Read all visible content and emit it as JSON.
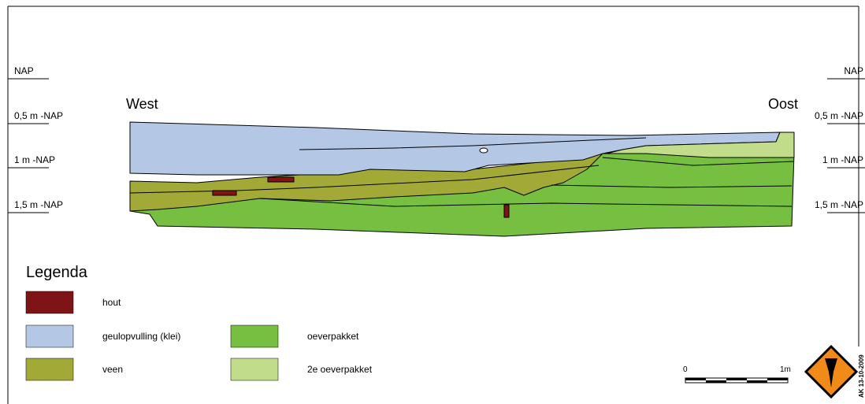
{
  "depth_labels_left": [
    "NAP",
    "0,5 m -NAP",
    "1 m -NAP",
    "1,5 m -NAP"
  ],
  "depth_labels_right": [
    "NAP",
    "0,5 m -NAP",
    "1 m -NAP",
    "1,5 m -NAP"
  ],
  "directions": {
    "west": "West",
    "east": "Oost"
  },
  "legend": {
    "title": "Legenda",
    "items": [
      {
        "label": "hout",
        "color": "#7f1416"
      },
      {
        "label": "geulopvulling (klei)",
        "color": "#b4c8e6"
      },
      {
        "label": "veen",
        "color": "#a3a937"
      },
      {
        "label": "oeverpakket",
        "color": "#76bf40"
      },
      {
        "label": "2e oeverpakket",
        "color": "#c1dc8b"
      }
    ]
  },
  "scale": {
    "start": "0",
    "end": "1m"
  },
  "stamp": "AK 13-10-2009"
}
